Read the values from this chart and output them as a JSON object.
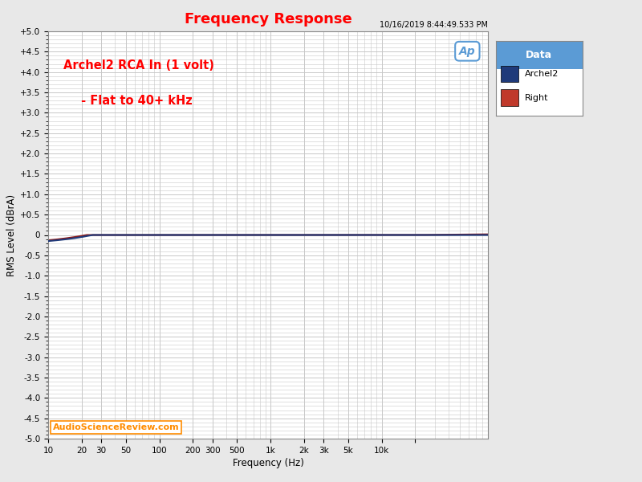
{
  "title": "Frequency Response",
  "title_color": "#FF0000",
  "timestamp": "10/16/2019 8:44:49.533 PM",
  "timestamp_color": "#000000",
  "annotation_line1": "Archel2 RCA In (1 volt)",
  "annotation_line2": " - Flat to 40+ kHz",
  "annotation_color": "#FF0000",
  "watermark": "AudioScienceReview.com",
  "watermark_color": "#FF8C00",
  "xlabel": "Frequency (Hz)",
  "ylabel": "RMS Level (dBrA)",
  "xmin": 10,
  "xmax": 90000,
  "ymin": -5.0,
  "ymax": 5.0,
  "yticks": [
    -5.0,
    -4.5,
    -4.0,
    -3.5,
    -3.0,
    -2.5,
    -2.0,
    -1.5,
    -1.0,
    -0.5,
    0.0,
    0.5,
    1.0,
    1.5,
    2.0,
    2.5,
    3.0,
    3.5,
    4.0,
    4.5,
    5.0
  ],
  "ytick_labels": [
    "-5.0",
    "-4.5",
    "-4.0",
    "-3.5",
    "-3.0",
    "-2.5",
    "-2.0",
    "-1.5",
    "-1.0",
    "-0.5",
    "0",
    "+0.5",
    "+1.0",
    "+1.5",
    "+2.0",
    "+2.5",
    "+3.0",
    "+3.5",
    "+4.0",
    "+4.5",
    "+5.0"
  ],
  "xtick_positions": [
    10,
    20,
    30,
    50,
    100,
    200,
    300,
    500,
    1000,
    2000,
    3000,
    5000,
    10000,
    20000
  ],
  "xtick_labels": [
    "10",
    "20",
    "30",
    "50",
    "100",
    "200",
    "300",
    "500",
    "1k",
    "2k",
    "3k",
    "5k",
    "10k",
    ""
  ],
  "bg_color": "#E8E8E8",
  "plot_bg_color": "#FFFFFF",
  "grid_color": "#C8C8C8",
  "legend_title": "Data",
  "legend_title_bg": "#5B9BD5",
  "legend_entries": [
    "Archel2",
    "Right"
  ],
  "legend_colors": [
    "#1F3A7A",
    "#C0392B"
  ],
  "line1_color": "#1F3A7A",
  "line2_color": "#8B1A1A",
  "line_width": 1.5,
  "fig_width": 8.0,
  "fig_height": 6.0
}
